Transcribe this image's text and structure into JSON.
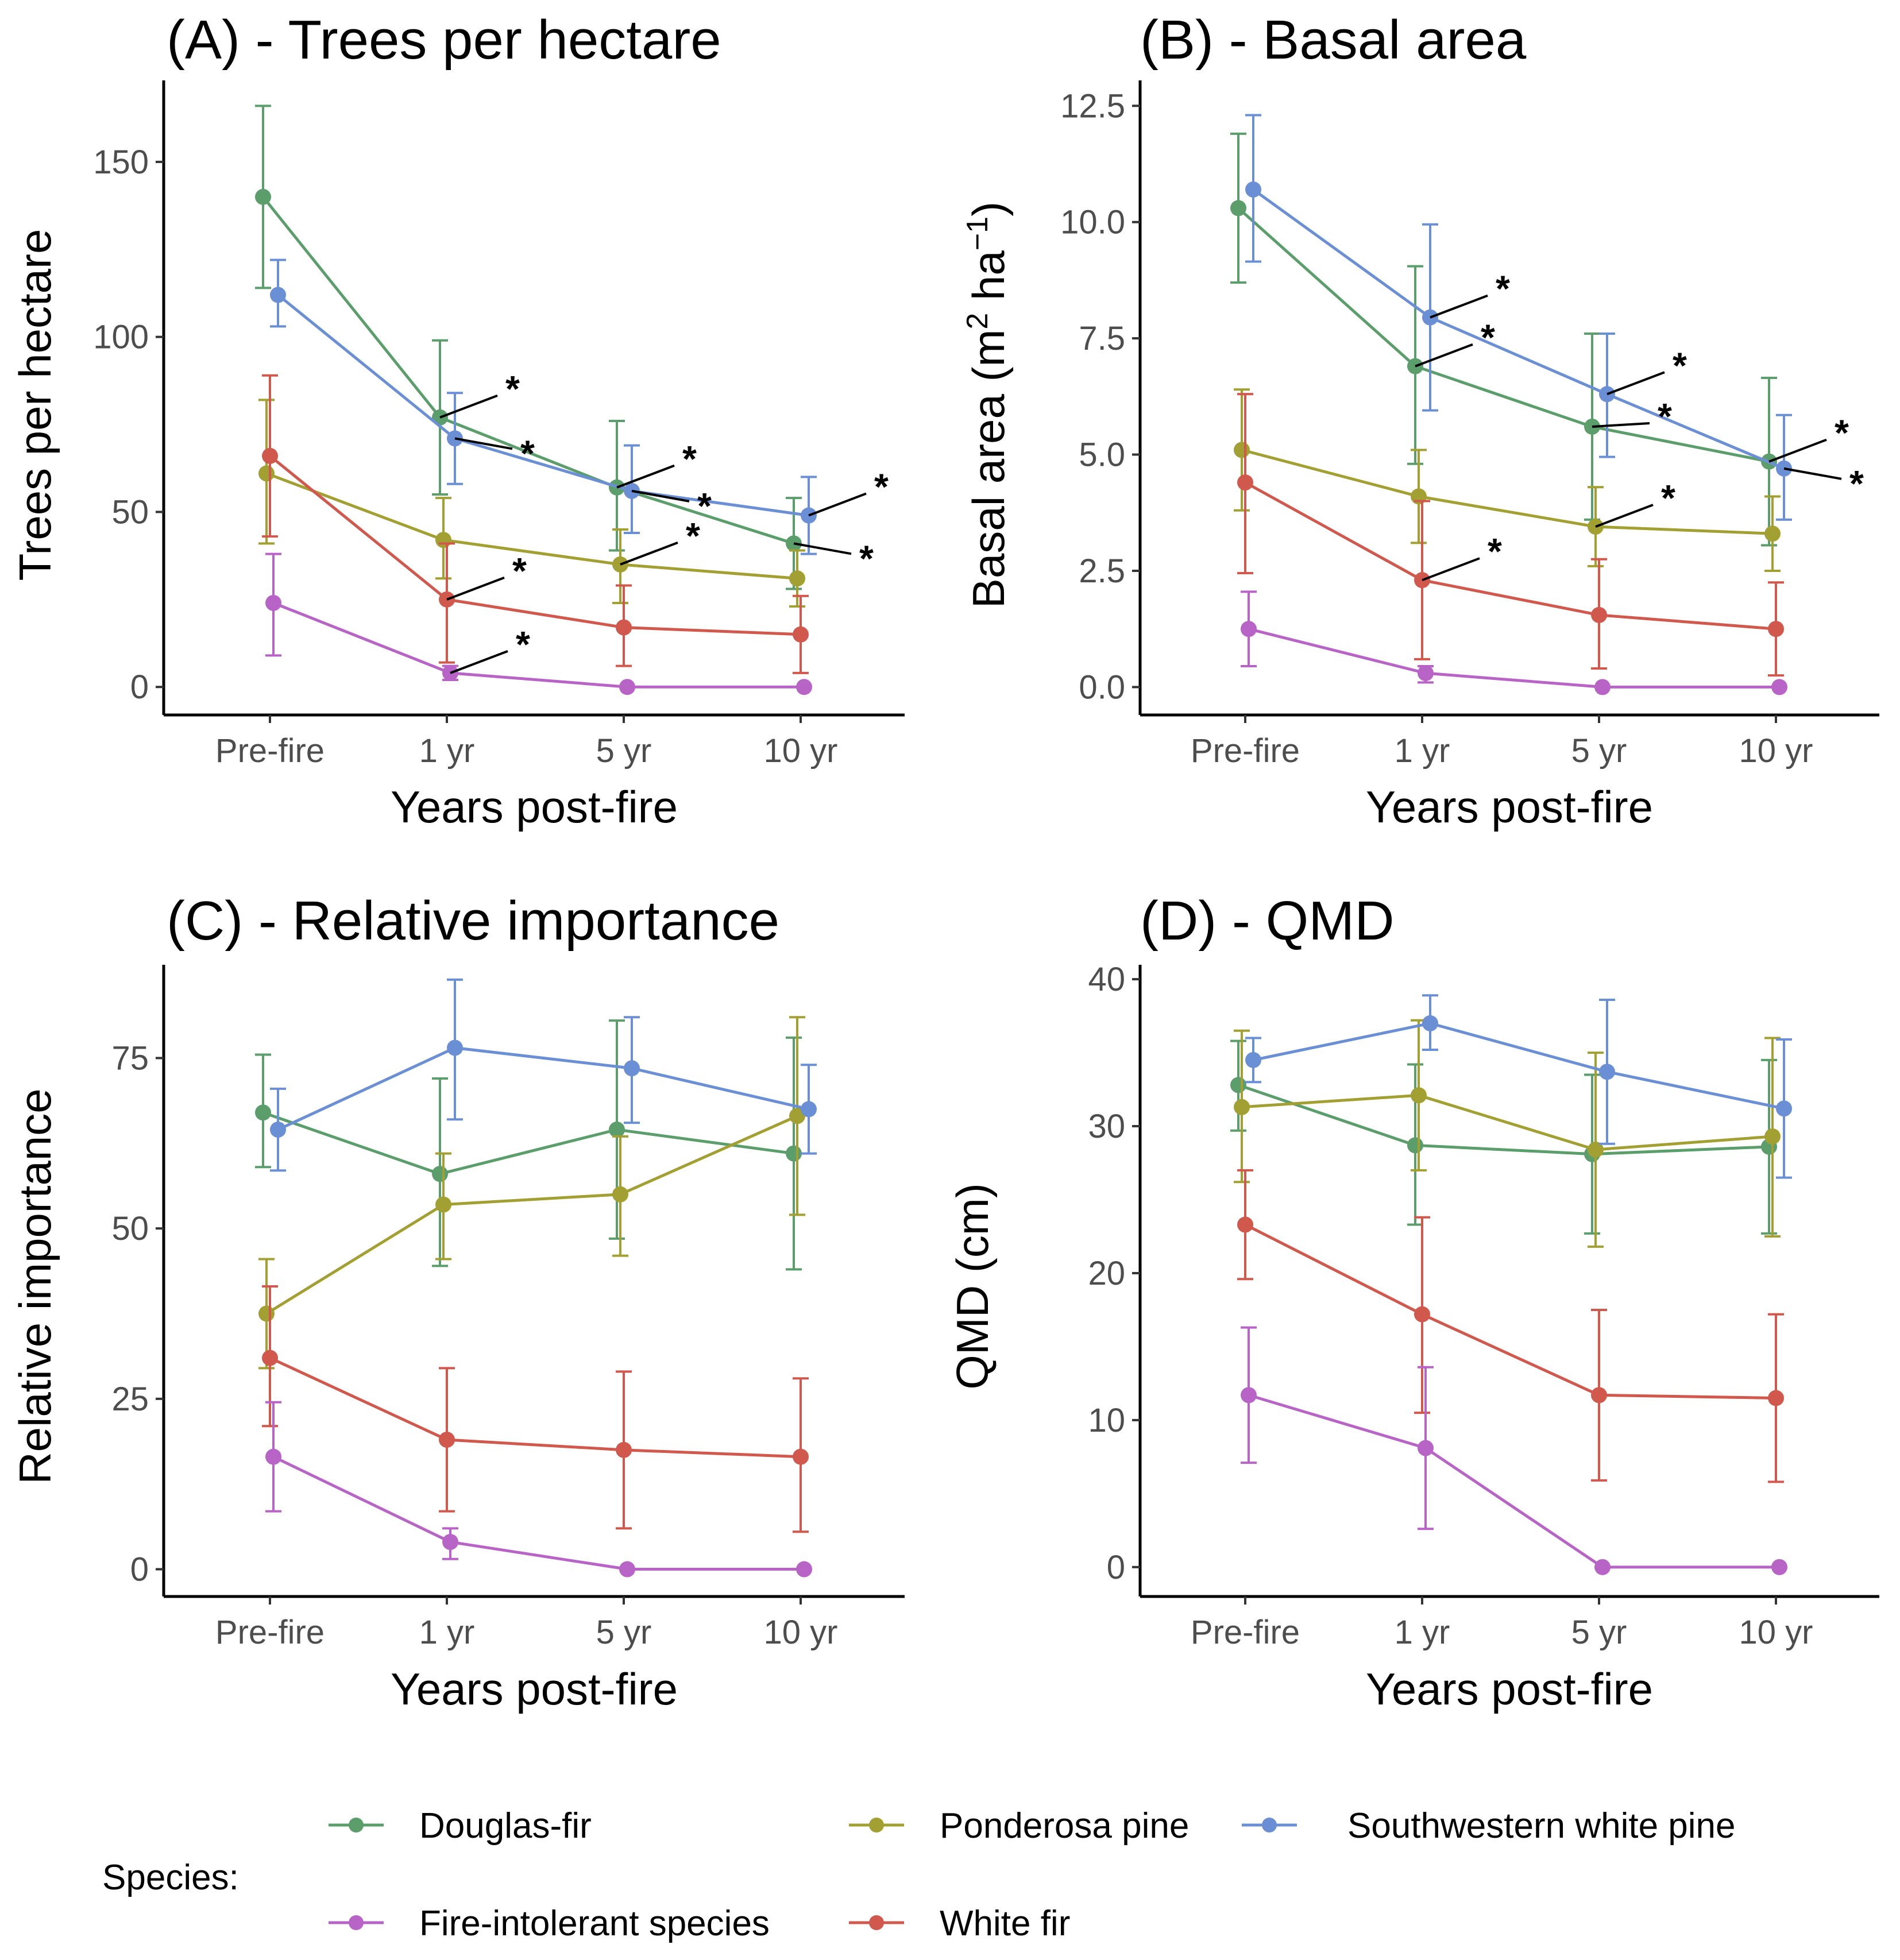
{
  "figure": {
    "x_axis_title": "Years post-fire",
    "categories": [
      "Pre-fire",
      "1 yr",
      "5 yr",
      "10 yr"
    ]
  },
  "legend": {
    "title": "Species:",
    "items": [
      {
        "key": "douglas",
        "label": "Douglas-fir"
      },
      {
        "key": "ponderosa",
        "label": "Ponderosa pine"
      },
      {
        "key": "swwp",
        "label": "Southwestern white pine"
      },
      {
        "key": "fireint",
        "label": "Fire-intolerant species"
      },
      {
        "key": "whitefir",
        "label": "White fir"
      }
    ]
  },
  "colors": {
    "douglas": "#5b9e6b",
    "ponderosa": "#a3a033",
    "swwp": "#6b8fd4",
    "fireint": "#b864c6",
    "whitefir": "#d0584c"
  },
  "chart_data": [
    {
      "id": "A",
      "type": "line",
      "title": "(A) - Trees per hectare",
      "xlabel": "Years post-fire",
      "ylabel": "Trees per hectare",
      "ylim": [
        -8,
        170
      ],
      "yticks": [
        0,
        50,
        100,
        150
      ],
      "ytick_labels": [
        "0",
        "50",
        "100",
        "150"
      ],
      "categories": [
        "Pre-fire",
        "1 yr",
        "5 yr",
        "10 yr"
      ],
      "series": [
        {
          "key": "douglas",
          "name": "Douglas-fir",
          "values": [
            140,
            77,
            57,
            41
          ],
          "lower": [
            114,
            55,
            39,
            28
          ],
          "upper": [
            166,
            99,
            76,
            54
          ]
        },
        {
          "key": "ponderosa",
          "name": "Ponderosa pine",
          "values": [
            61,
            42,
            35,
            31
          ],
          "lower": [
            41,
            31,
            24,
            23
          ],
          "upper": [
            82,
            54,
            45,
            39
          ]
        },
        {
          "key": "swwp",
          "name": "Southwestern white pine",
          "values": [
            112,
            71,
            56,
            49
          ],
          "lower": [
            103,
            58,
            44,
            38
          ],
          "upper": [
            122,
            84,
            69,
            60
          ]
        },
        {
          "key": "fireint",
          "name": "Fire-intolerant species",
          "values": [
            24,
            4,
            0,
            0
          ],
          "lower": [
            9,
            2,
            0,
            0
          ],
          "upper": [
            38,
            6,
            0,
            0
          ]
        },
        {
          "key": "whitefir",
          "name": "White fir",
          "values": [
            66,
            25,
            17,
            15
          ],
          "lower": [
            43,
            7,
            6,
            4
          ],
          "upper": [
            89,
            41,
            29,
            26
          ]
        }
      ],
      "annotations": [
        {
          "series": "douglas",
          "cat": 1,
          "label": "*",
          "side": "up"
        },
        {
          "series": "swwp",
          "cat": 1,
          "label": "*",
          "side": "down"
        },
        {
          "series": "douglas",
          "cat": 2,
          "label": "*",
          "side": "up"
        },
        {
          "series": "swwp",
          "cat": 2,
          "label": "*",
          "side": "down"
        },
        {
          "series": "ponderosa",
          "cat": 2,
          "label": "*",
          "side": "up"
        },
        {
          "series": "swwp",
          "cat": 3,
          "label": "*",
          "side": "up"
        },
        {
          "series": "douglas",
          "cat": 3,
          "label": "*",
          "side": "down"
        },
        {
          "series": "whitefir",
          "cat": 1,
          "label": "*",
          "side": "up"
        },
        {
          "series": "fireint",
          "cat": 1,
          "label": "*",
          "side": "up"
        }
      ]
    },
    {
      "id": "B",
      "type": "line",
      "title": "(B) - Basal area",
      "xlabel": "Years post-fire",
      "ylabel": "Basal area (m",
      "ylabel_sup1": "2",
      "ylabel_mid": " ha",
      "ylabel_sup2": "−1",
      "ylabel_end": ")",
      "ylim": [
        -0.6,
        12.8
      ],
      "yticks": [
        0,
        2.5,
        5,
        7.5,
        10,
        12.5
      ],
      "ytick_labels": [
        "0.0",
        "2.5",
        "5.0",
        "7.5",
        "10.0",
        "12.5"
      ],
      "categories": [
        "Pre-fire",
        "1 yr",
        "5 yr",
        "10 yr"
      ],
      "series": [
        {
          "key": "douglas",
          "name": "Douglas-fir",
          "values": [
            10.3,
            6.9,
            5.6,
            4.85
          ],
          "lower": [
            8.7,
            4.8,
            3.6,
            3.05
          ],
          "upper": [
            11.9,
            9.05,
            7.6,
            6.65
          ]
        },
        {
          "key": "ponderosa",
          "name": "Ponderosa pine",
          "values": [
            5.1,
            4.1,
            3.45,
            3.3
          ],
          "lower": [
            3.8,
            3.1,
            2.6,
            2.5
          ],
          "upper": [
            6.4,
            5.1,
            4.3,
            4.1
          ]
        },
        {
          "key": "swwp",
          "name": "Southwestern white pine",
          "values": [
            10.7,
            7.95,
            6.3,
            4.7
          ],
          "lower": [
            9.15,
            5.95,
            4.95,
            3.6
          ],
          "upper": [
            12.3,
            9.95,
            7.6,
            5.85
          ]
        },
        {
          "key": "fireint",
          "name": "Fire-intolerant species",
          "values": [
            1.25,
            0.3,
            0,
            0
          ],
          "lower": [
            0.45,
            0.1,
            0,
            0
          ],
          "upper": [
            2.05,
            0.45,
            0,
            0
          ]
        },
        {
          "key": "whitefir",
          "name": "White fir",
          "values": [
            4.4,
            2.3,
            1.55,
            1.25
          ],
          "lower": [
            2.45,
            0.6,
            0.4,
            0.25
          ],
          "upper": [
            6.3,
            4.0,
            2.75,
            2.25
          ]
        }
      ],
      "annotations": [
        {
          "series": "swwp",
          "cat": 1,
          "label": "*",
          "side": "up"
        },
        {
          "series": "douglas",
          "cat": 1,
          "label": "*",
          "side": "up"
        },
        {
          "series": "swwp",
          "cat": 2,
          "label": "*",
          "side": "up"
        },
        {
          "series": "douglas",
          "cat": 2,
          "label": "*",
          "side": "flat"
        },
        {
          "series": "ponderosa",
          "cat": 2,
          "label": "*",
          "side": "up"
        },
        {
          "series": "whitefir",
          "cat": 1,
          "label": "*",
          "side": "up"
        },
        {
          "series": "douglas",
          "cat": 3,
          "label": "*",
          "side": "up"
        },
        {
          "series": "swwp",
          "cat": 3,
          "label": "*",
          "side": "down"
        }
      ]
    },
    {
      "id": "C",
      "type": "line",
      "title": "(C) - Relative importance",
      "xlabel": "Years post-fire",
      "ylabel": "Relative importance",
      "ylim": [
        -4,
        87
      ],
      "yticks": [
        0,
        25,
        50,
        75
      ],
      "ytick_labels": [
        "0",
        "25",
        "50",
        "75"
      ],
      "categories": [
        "Pre-fire",
        "1 yr",
        "5 yr",
        "10 yr"
      ],
      "series": [
        {
          "key": "douglas",
          "name": "Douglas-fir",
          "values": [
            67,
            58,
            64.5,
            61
          ],
          "lower": [
            59,
            44.5,
            48.5,
            44
          ],
          "upper": [
            75.5,
            72,
            80.5,
            78
          ]
        },
        {
          "key": "ponderosa",
          "name": "Ponderosa pine",
          "values": [
            37.5,
            53.5,
            55,
            66.5
          ],
          "lower": [
            29.5,
            45.5,
            46,
            52
          ],
          "upper": [
            45.5,
            61,
            63.5,
            81
          ]
        },
        {
          "key": "swwp",
          "name": "Southwestern white pine",
          "values": [
            64.5,
            76.5,
            73.5,
            67.5
          ],
          "lower": [
            58.5,
            66,
            65.5,
            61
          ],
          "upper": [
            70.5,
            86.5,
            81,
            74
          ]
        },
        {
          "key": "fireint",
          "name": "Fire-intolerant species",
          "values": [
            16.5,
            4,
            0,
            0
          ],
          "lower": [
            8.5,
            1.5,
            0,
            0
          ],
          "upper": [
            24.5,
            6,
            0,
            0
          ]
        },
        {
          "key": "whitefir",
          "name": "White fir",
          "values": [
            31,
            19,
            17.5,
            16.5
          ],
          "lower": [
            21,
            8.5,
            6,
            5.5
          ],
          "upper": [
            41.5,
            29.5,
            29,
            28
          ]
        }
      ],
      "annotations": []
    },
    {
      "id": "D",
      "type": "line",
      "title": "(D) - QMD",
      "xlabel": "Years post-fire",
      "ylabel": "QMD (cm)",
      "ylim": [
        -2,
        40.2
      ],
      "yticks": [
        0,
        10,
        20,
        30,
        40
      ],
      "ytick_labels": [
        "0",
        "10",
        "20",
        "30",
        "40"
      ],
      "categories": [
        "Pre-fire",
        "1 yr",
        "5 yr",
        "10 yr"
      ],
      "series": [
        {
          "key": "douglas",
          "name": "Douglas-fir",
          "values": [
            32.8,
            28.7,
            28.1,
            28.6
          ],
          "lower": [
            29.7,
            23.3,
            22.7,
            22.7
          ],
          "upper": [
            35.8,
            34.2,
            33.5,
            34.5
          ]
        },
        {
          "key": "ponderosa",
          "name": "Ponderosa pine",
          "values": [
            31.3,
            32.1,
            28.4,
            29.3
          ],
          "lower": [
            26.2,
            27.0,
            21.8,
            22.5
          ],
          "upper": [
            36.5,
            37.2,
            35.0,
            36.0
          ]
        },
        {
          "key": "swwp",
          "name": "Southwestern white pine",
          "values": [
            34.5,
            37.0,
            33.7,
            31.2
          ],
          "lower": [
            33.0,
            35.2,
            28.8,
            26.5
          ],
          "upper": [
            36.0,
            38.9,
            38.6,
            35.9
          ]
        },
        {
          "key": "fireint",
          "name": "Fire-intolerant species",
          "values": [
            11.7,
            8.1,
            0,
            0
          ],
          "lower": [
            7.1,
            2.6,
            0,
            0
          ],
          "upper": [
            16.3,
            13.6,
            0,
            0
          ]
        },
        {
          "key": "whitefir",
          "name": "White fir",
          "values": [
            23.3,
            17.2,
            11.7,
            11.5
          ],
          "lower": [
            19.6,
            10.5,
            5.9,
            5.8
          ],
          "upper": [
            27.0,
            23.8,
            17.5,
            17.2
          ]
        }
      ],
      "annotations": []
    }
  ]
}
